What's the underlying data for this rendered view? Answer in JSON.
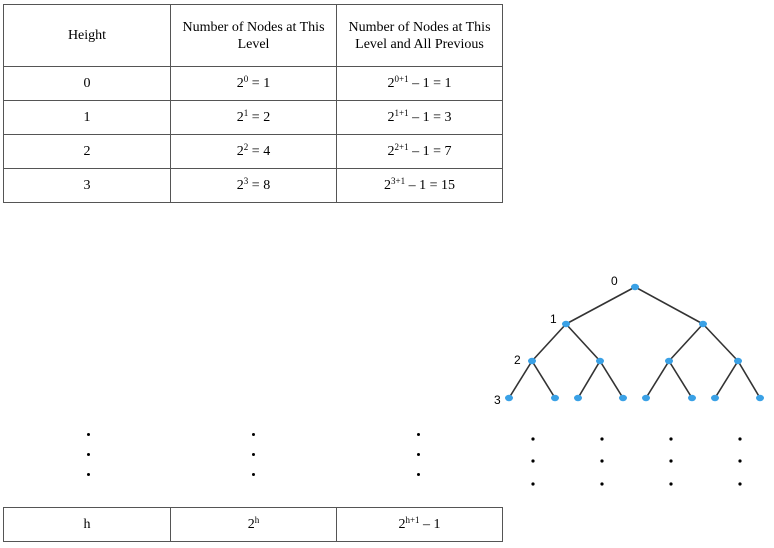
{
  "table": {
    "headers": [
      "Height",
      "Number of Nodes at This Level",
      "Number of Nodes at This Level and All Previous"
    ],
    "rows": [
      {
        "height": "0",
        "level_base": "2",
        "level_exp": "0",
        "level_rest": " = 1",
        "cum_base": "2",
        "cum_exp": "0+1",
        "cum_rest": " – 1 = 1"
      },
      {
        "height": "1",
        "level_base": "2",
        "level_exp": "1",
        "level_rest": " = 2",
        "cum_base": "2",
        "cum_exp": "1+1",
        "cum_rest": " – 1 = 3"
      },
      {
        "height": "2",
        "level_base": "2",
        "level_exp": "2",
        "level_rest": " = 4",
        "cum_base": "2",
        "cum_exp": "2+1",
        "cum_rest": " – 1 = 7"
      },
      {
        "height": "3",
        "level_base": "2",
        "level_exp": "3",
        "level_rest": " = 8",
        "cum_base": "2",
        "cum_exp": "3+1",
        "cum_rest": " – 1 = 15"
      }
    ],
    "footer": {
      "height": "h",
      "level_base": "2",
      "level_exp": "h",
      "cum_base": "2",
      "cum_exp": "h+1",
      "cum_rest": " – 1"
    }
  },
  "tree": {
    "level_labels": [
      "0",
      "1",
      "2",
      "3"
    ],
    "node_color": "#3aa1e6",
    "edge_color": "#333333"
  }
}
